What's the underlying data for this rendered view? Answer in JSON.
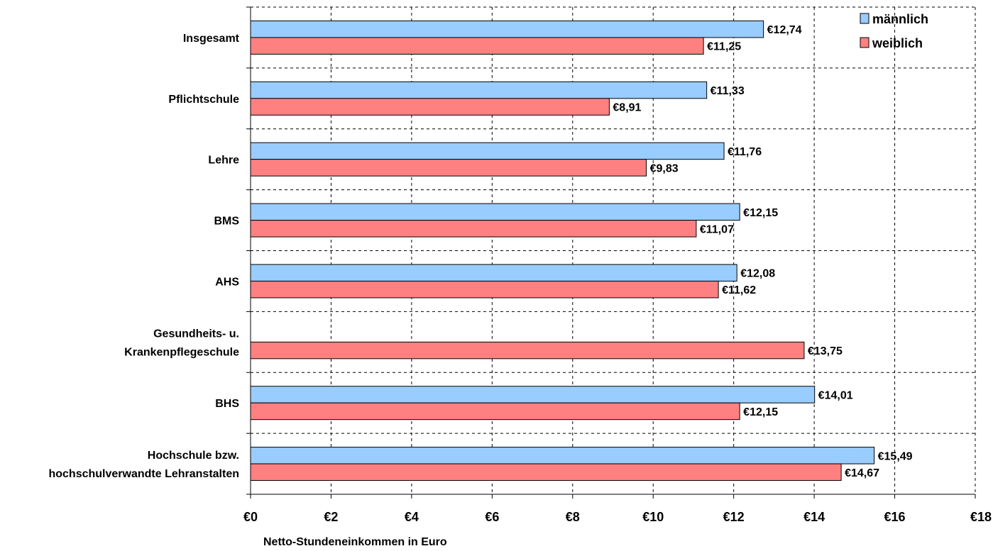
{
  "chart_data": {
    "type": "bar",
    "orientation": "horizontal",
    "categories": [
      [
        "Insgesamt"
      ],
      [
        "Pflichtschule"
      ],
      [
        "Lehre"
      ],
      [
        "BMS"
      ],
      [
        "AHS"
      ],
      [
        "Gesundheits- u.",
        "Krankenpflegeschule"
      ],
      [
        "BHS"
      ],
      [
        "Hochschule bzw.",
        "hochschulverwandte Lehranstalten"
      ]
    ],
    "series": [
      {
        "name": "männlich",
        "color": "#99ccff",
        "values": [
          12.74,
          11.33,
          11.76,
          12.15,
          12.08,
          null,
          14.01,
          15.49
        ],
        "labels": [
          "€12,74",
          "€11,33",
          "€11,76",
          "€12,15",
          "€12,08",
          null,
          "€14,01",
          "€15,49"
        ]
      },
      {
        "name": "weiblich",
        "color": "#ff8080",
        "values": [
          11.25,
          8.91,
          9.83,
          11.07,
          11.62,
          13.75,
          12.15,
          14.67
        ],
        "labels": [
          "€11,25",
          "€8,91",
          "€9,83",
          "€11,07",
          "€11,62",
          "€13,75",
          "€12,15",
          "€14,67"
        ]
      }
    ],
    "xlim": [
      0,
      18
    ],
    "xticks": [
      0,
      2,
      4,
      6,
      8,
      10,
      12,
      14,
      16,
      18
    ],
    "xtick_labels": [
      "€0",
      "€2",
      "€4",
      "€6",
      "€8",
      "€10",
      "€12",
      "€14",
      "€16",
      "€18"
    ],
    "xlabel": "Netto-Stundeneinkommen in Euro",
    "title": "",
    "grid": "dashed",
    "legend": "top-right"
  }
}
